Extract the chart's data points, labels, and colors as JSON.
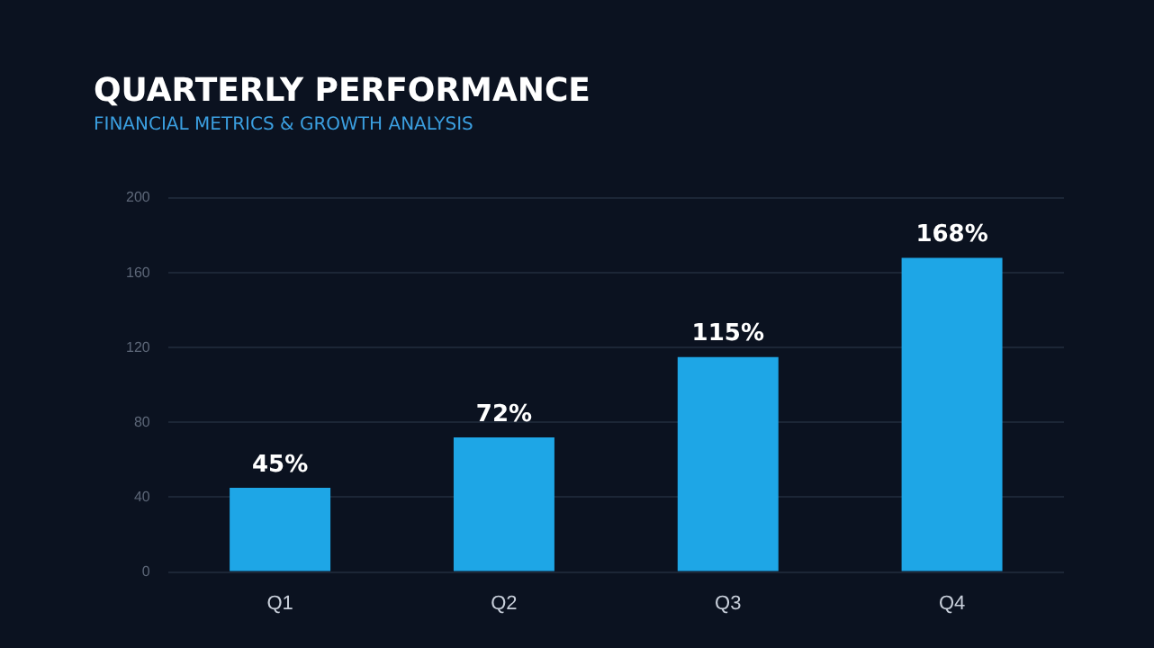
{
  "chart_data": {
    "type": "bar",
    "title": "QUARTERLY PERFORMANCE",
    "subtitle": "FINANCIAL METRICS & GROWTH ANALYSIS",
    "categories": [
      "Q1",
      "Q2",
      "Q3",
      "Q4"
    ],
    "values": [
      45,
      72,
      115,
      168
    ],
    "value_labels": [
      "45%",
      "72%",
      "115%",
      "168%"
    ],
    "color": "#1ea6e6",
    "ylim": [
      0,
      200
    ],
    "yticks": [
      0,
      40,
      80,
      120,
      160,
      200
    ],
    "grid": "y",
    "legend": false
  }
}
